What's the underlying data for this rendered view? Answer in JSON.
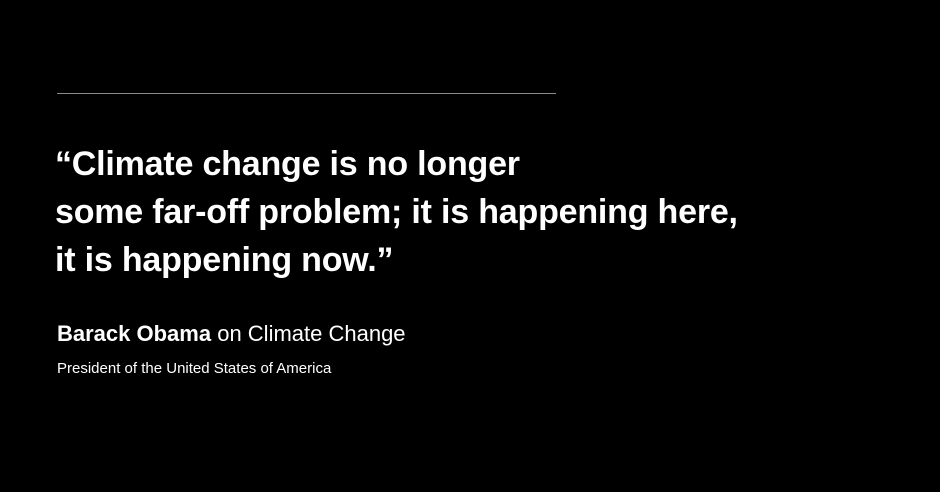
{
  "quote": {
    "lines": [
      "“Climate change is no longer",
      "some far-off problem; it is happening here,",
      "it is happening now.”"
    ]
  },
  "attribution": {
    "name": "Barack Obama",
    "topic": " on Climate Change",
    "title": "President of the United States of America"
  },
  "colors": {
    "background": "#000000",
    "text": "#ffffff",
    "divider": "#8a8a8a"
  }
}
